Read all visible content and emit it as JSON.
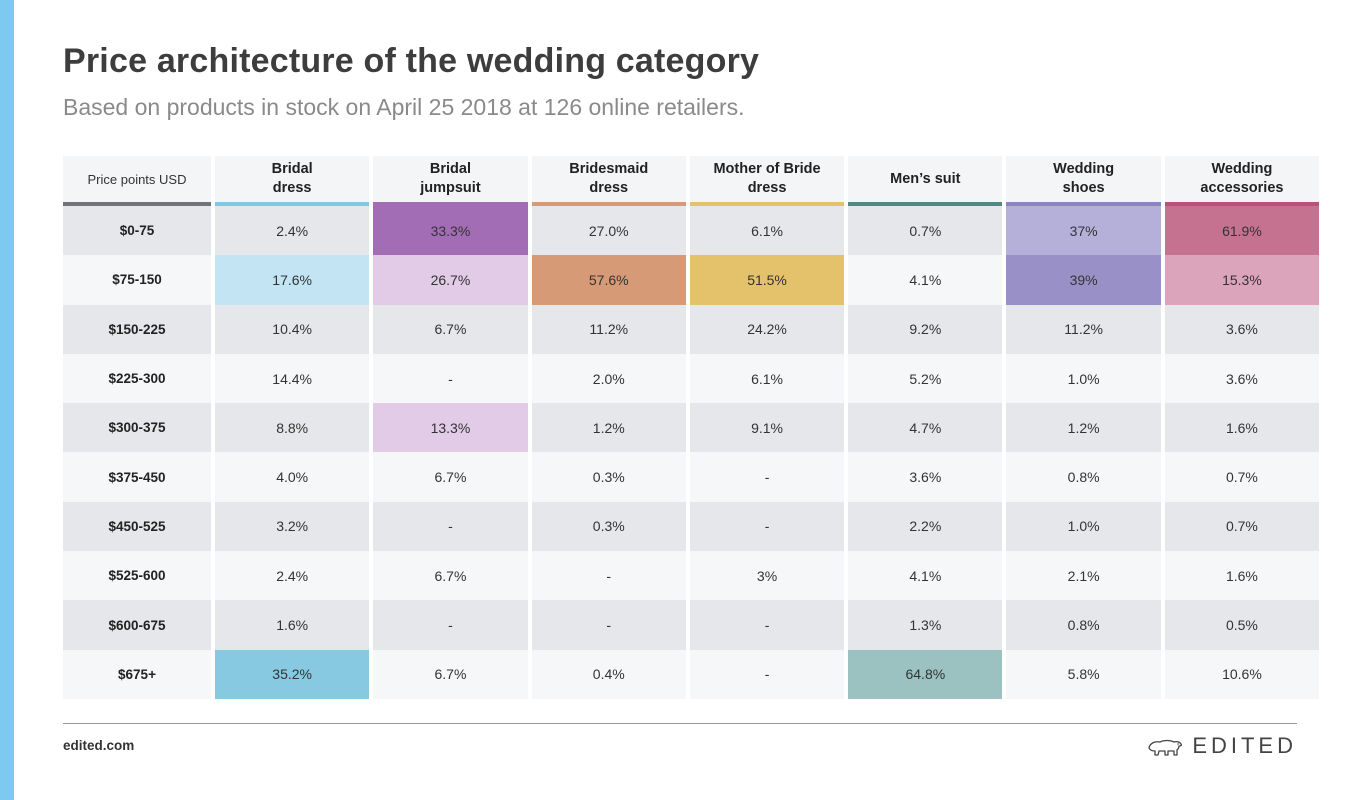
{
  "header": {
    "title": "Price architecture of the wedding category",
    "subtitle": "Based on products in stock on April 25 2018 at 126 online retailers."
  },
  "footer": {
    "site": "edited.com",
    "brand": "EDITED"
  },
  "chart_data": {
    "type": "table",
    "title": "Price architecture of the wedding category",
    "subtitle": "Based on products in stock on April 25 2018 at 126 online retailers.",
    "row_header": "Price points USD",
    "columns": [
      {
        "name": "Bridal dress",
        "lines": [
          "Bridal",
          "dress"
        ],
        "color": "#7ec8e3"
      },
      {
        "name": "Bridal jumpsuit",
        "lines": [
          "Bridal",
          "jumpsuit"
        ],
        "color": "#a26db5"
      },
      {
        "name": "Bridesmaid dress",
        "lines": [
          "Bridesmaid",
          "dress"
        ],
        "color": "#d69a76"
      },
      {
        "name": "Mother of Bride dress",
        "lines": [
          "Mother of Bride",
          "dress"
        ],
        "color": "#e4c16b"
      },
      {
        "name": "Men’s suit",
        "lines": [
          "Men’s suit"
        ],
        "color": "#4f8a86"
      },
      {
        "name": "Wedding shoes",
        "lines": [
          "Wedding",
          "shoes"
        ],
        "color": "#8d84c4"
      },
      {
        "name": "Wedding accessories",
        "lines": [
          "Wedding",
          "accessories"
        ],
        "color": "#b8527a"
      }
    ],
    "rows": [
      {
        "label": "$0-75",
        "cells": [
          {
            "text": "2.4%",
            "hl": ""
          },
          {
            "text": "33.3%",
            "hl": "#a26db5"
          },
          {
            "text": "27.0%",
            "hl": ""
          },
          {
            "text": "6.1%",
            "hl": ""
          },
          {
            "text": "0.7%",
            "hl": ""
          },
          {
            "text": "37%",
            "hl": "#b5b0d9"
          },
          {
            "text": "61.9%",
            "hl": "#c4728f"
          }
        ]
      },
      {
        "label": "$75-150",
        "cells": [
          {
            "text": "17.6%",
            "hl": "#c2e4f3"
          },
          {
            "text": "26.7%",
            "hl": "#e2cbe6"
          },
          {
            "text": "57.6%",
            "hl": "#d69a76"
          },
          {
            "text": "51.5%",
            "hl": "#e4c16b"
          },
          {
            "text": "4.1%",
            "hl": ""
          },
          {
            "text": "39%",
            "hl": "#9a90c8"
          },
          {
            "text": "15.3%",
            "hl": "#dba4bb"
          }
        ]
      },
      {
        "label": "$150-225",
        "cells": [
          {
            "text": "10.4%",
            "hl": ""
          },
          {
            "text": "6.7%",
            "hl": ""
          },
          {
            "text": "11.2%",
            "hl": ""
          },
          {
            "text": "24.2%",
            "hl": ""
          },
          {
            "text": "9.2%",
            "hl": ""
          },
          {
            "text": "11.2%",
            "hl": ""
          },
          {
            "text": "3.6%",
            "hl": ""
          }
        ]
      },
      {
        "label": "$225-300",
        "cells": [
          {
            "text": "14.4%",
            "hl": ""
          },
          {
            "text": "-",
            "hl": ""
          },
          {
            "text": "2.0%",
            "hl": ""
          },
          {
            "text": "6.1%",
            "hl": ""
          },
          {
            "text": "5.2%",
            "hl": ""
          },
          {
            "text": "1.0%",
            "hl": ""
          },
          {
            "text": "3.6%",
            "hl": ""
          }
        ]
      },
      {
        "label": "$300-375",
        "cells": [
          {
            "text": "8.8%",
            "hl": ""
          },
          {
            "text": "13.3%",
            "hl": "#e2cbe6"
          },
          {
            "text": "1.2%",
            "hl": ""
          },
          {
            "text": "9.1%",
            "hl": ""
          },
          {
            "text": "4.7%",
            "hl": ""
          },
          {
            "text": "1.2%",
            "hl": ""
          },
          {
            "text": "1.6%",
            "hl": ""
          }
        ]
      },
      {
        "label": "$375-450",
        "cells": [
          {
            "text": "4.0%",
            "hl": ""
          },
          {
            "text": "6.7%",
            "hl": ""
          },
          {
            "text": "0.3%",
            "hl": ""
          },
          {
            "text": "-",
            "hl": ""
          },
          {
            "text": "3.6%",
            "hl": ""
          },
          {
            "text": "0.8%",
            "hl": ""
          },
          {
            "text": "0.7%",
            "hl": ""
          }
        ]
      },
      {
        "label": "$450-525",
        "cells": [
          {
            "text": "3.2%",
            "hl": ""
          },
          {
            "text": "-",
            "hl": ""
          },
          {
            "text": "0.3%",
            "hl": ""
          },
          {
            "text": "-",
            "hl": ""
          },
          {
            "text": "2.2%",
            "hl": ""
          },
          {
            "text": "1.0%",
            "hl": ""
          },
          {
            "text": "0.7%",
            "hl": ""
          }
        ]
      },
      {
        "label": "$525-600",
        "cells": [
          {
            "text": "2.4%",
            "hl": ""
          },
          {
            "text": "6.7%",
            "hl": ""
          },
          {
            "text": "-",
            "hl": ""
          },
          {
            "text": "3%",
            "hl": ""
          },
          {
            "text": "4.1%",
            "hl": ""
          },
          {
            "text": "2.1%",
            "hl": ""
          },
          {
            "text": "1.6%",
            "hl": ""
          }
        ]
      },
      {
        "label": "$600-675",
        "cells": [
          {
            "text": "1.6%",
            "hl": ""
          },
          {
            "text": "-",
            "hl": ""
          },
          {
            "text": "-",
            "hl": ""
          },
          {
            "text": "-",
            "hl": ""
          },
          {
            "text": "1.3%",
            "hl": ""
          },
          {
            "text": "0.8%",
            "hl": ""
          },
          {
            "text": "0.5%",
            "hl": ""
          }
        ]
      },
      {
        "label": "$675+",
        "cells": [
          {
            "text": "35.2%",
            "hl": "#88c9e2"
          },
          {
            "text": "6.7%",
            "hl": ""
          },
          {
            "text": "0.4%",
            "hl": ""
          },
          {
            "text": "-",
            "hl": ""
          },
          {
            "text": "64.8%",
            "hl": "#9bc1c0"
          },
          {
            "text": "5.8%",
            "hl": ""
          },
          {
            "text": "10.6%",
            "hl": ""
          }
        ]
      }
    ],
    "first_column_bar_color": "#6f747a"
  }
}
